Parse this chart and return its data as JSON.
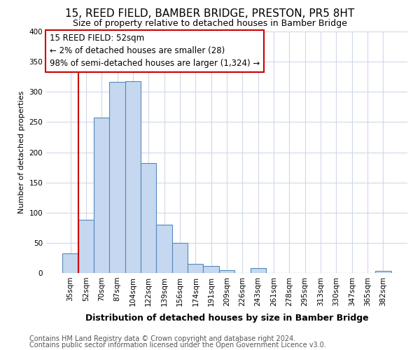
{
  "title": "15, REED FIELD, BAMBER BRIDGE, PRESTON, PR5 8HT",
  "subtitle": "Size of property relative to detached houses in Bamber Bridge",
  "xlabel": "Distribution of detached houses by size in Bamber Bridge",
  "ylabel": "Number of detached properties",
  "footer_line1": "Contains HM Land Registry data © Crown copyright and database right 2024.",
  "footer_line2": "Contains public sector information licensed under the Open Government Licence v3.0.",
  "bar_labels": [
    "35sqm",
    "52sqm",
    "70sqm",
    "87sqm",
    "104sqm",
    "122sqm",
    "139sqm",
    "156sqm",
    "174sqm",
    "191sqm",
    "209sqm",
    "226sqm",
    "243sqm",
    "261sqm",
    "278sqm",
    "295sqm",
    "313sqm",
    "330sqm",
    "347sqm",
    "365sqm",
    "382sqm"
  ],
  "bar_values": [
    33,
    88,
    257,
    317,
    318,
    182,
    80,
    50,
    15,
    12,
    5,
    0,
    8,
    0,
    0,
    0,
    0,
    0,
    0,
    0,
    3
  ],
  "bar_color": "#c5d8f0",
  "bar_edgecolor": "#5588bb",
  "annotation_text": "15 REED FIELD: 52sqm\n← 2% of detached houses are smaller (28)\n98% of semi-detached houses are larger (1,324) →",
  "annotation_bar_index": 1,
  "vline_x": 1,
  "ylim": [
    0,
    400
  ],
  "yticks": [
    0,
    50,
    100,
    150,
    200,
    250,
    300,
    350,
    400
  ],
  "background_color": "#ffffff",
  "grid_color": "#d0d8e8",
  "vline_color": "#cc0000",
  "annotation_box_edgecolor": "#cc0000",
  "title_fontsize": 11,
  "subtitle_fontsize": 9,
  "xlabel_fontsize": 9,
  "ylabel_fontsize": 8,
  "tick_fontsize": 7.5,
  "footer_fontsize": 7
}
